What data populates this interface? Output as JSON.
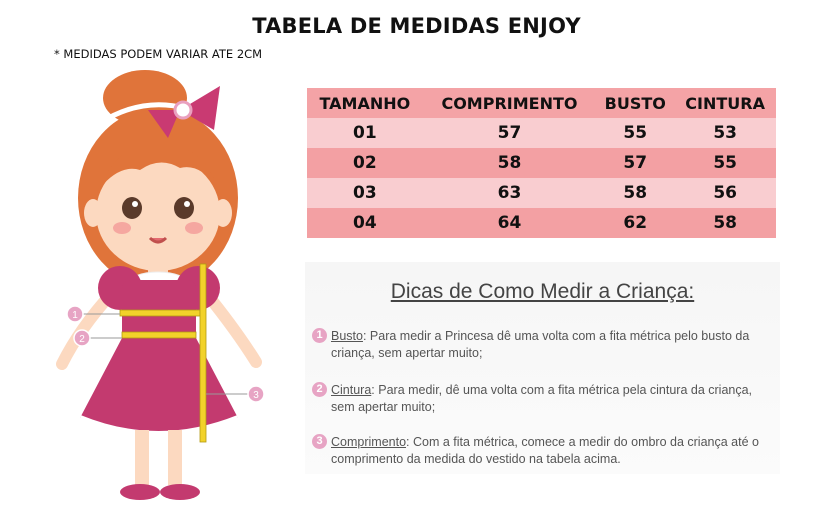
{
  "title": "TABELA DE MEDIDAS ENJOY",
  "note": "* MEDIDAS PODEM VARIAR ATE 2CM",
  "table": {
    "headers": [
      "TAMANHO",
      "COMPRIMENTO",
      "BUSTO",
      "CINTURA"
    ],
    "rows": [
      [
        "01",
        "57",
        "55",
        "53"
      ],
      [
        "02",
        "58",
        "57",
        "55"
      ],
      [
        "03",
        "63",
        "58",
        "56"
      ],
      [
        "04",
        "64",
        "62",
        "58"
      ]
    ]
  },
  "tips": {
    "title": "Dicas de Como Medir a Criança:",
    "items": [
      {
        "num": "1",
        "label": "Busto",
        "text": ": Para medir a Princesa dê uma volta com a fita métrica pelo busto da criança, sem apertar muito;"
      },
      {
        "num": "2",
        "label": "Cintura",
        "text": ": Para medir, dê uma volta com a fita métrica pela cintura da criança, sem apertar muito;"
      },
      {
        "num": "3",
        "label": "Comprimento",
        "text": ": Com a fita métrica, comece a medir do ombro da criança até o comprimento da medida do vestido na tabela acima."
      }
    ]
  },
  "illustration": {
    "markers": [
      "1",
      "2",
      "3"
    ],
    "colors": {
      "dress": "#c33a6f",
      "hair": "#e0743a",
      "skin": "#fcd9c0",
      "tape": "#f2d22a",
      "bow": "#c93a72"
    }
  }
}
